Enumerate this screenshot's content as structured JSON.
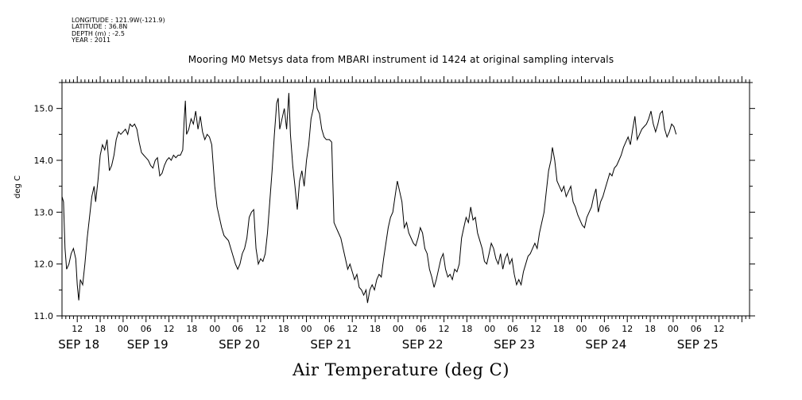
{
  "meta": {
    "longitude": "LONGITUDE : 121.9W(-121.9)",
    "latitude": "LATITUDE : 36.8N",
    "depth": "DEPTH (m) : -2.5",
    "year": "YEAR : 2011"
  },
  "chart_data": {
    "type": "line",
    "title": "Mooring M0 Metsys data from MBARI instrument id 1424 at original sampling intervals",
    "xlabel": "Air Temperature (deg C)",
    "ylabel": "deg C",
    "ylim": [
      11.0,
      15.5
    ],
    "y_ticks": [
      "11.0",
      "12.0",
      "13.0",
      "14.0",
      "15.0"
    ],
    "xlim_hours": [
      8,
      188
    ],
    "hour_tick_labels": [
      {
        "h": 12,
        "label": "12"
      },
      {
        "h": 18,
        "label": "18"
      },
      {
        "h": 24,
        "label": "00"
      },
      {
        "h": 30,
        "label": "06"
      },
      {
        "h": 36,
        "label": "12"
      },
      {
        "h": 42,
        "label": "18"
      },
      {
        "h": 48,
        "label": "00"
      },
      {
        "h": 54,
        "label": "06"
      },
      {
        "h": 60,
        "label": "12"
      },
      {
        "h": 66,
        "label": "18"
      },
      {
        "h": 72,
        "label": "00"
      },
      {
        "h": 78,
        "label": "06"
      },
      {
        "h": 84,
        "label": "12"
      },
      {
        "h": 90,
        "label": "18"
      },
      {
        "h": 96,
        "label": "00"
      },
      {
        "h": 102,
        "label": "06"
      },
      {
        "h": 108,
        "label": "12"
      },
      {
        "h": 114,
        "label": "18"
      },
      {
        "h": 120,
        "label": "00"
      },
      {
        "h": 126,
        "label": "06"
      },
      {
        "h": 132,
        "label": "12"
      },
      {
        "h": 138,
        "label": "18"
      },
      {
        "h": 144,
        "label": "00"
      },
      {
        "h": 150,
        "label": "06"
      },
      {
        "h": 156,
        "label": "12"
      },
      {
        "h": 162,
        "label": "18"
      },
      {
        "h": 168,
        "label": "00"
      },
      {
        "h": 174,
        "label": "06"
      },
      {
        "h": 180,
        "label": "12"
      }
    ],
    "day_labels": [
      {
        "h": 12,
        "label": "SEP 18"
      },
      {
        "h": 30,
        "label": "SEP 19"
      },
      {
        "h": 54,
        "label": "SEP 20"
      },
      {
        "h": 78,
        "label": "SEP 21"
      },
      {
        "h": 102,
        "label": "SEP 22"
      },
      {
        "h": 126,
        "label": "SEP 23"
      },
      {
        "h": 150,
        "label": "SEP 24"
      },
      {
        "h": 174,
        "label": "SEP 25"
      }
    ],
    "series": [
      {
        "points": [
          [
            8.0,
            13.3
          ],
          [
            8.4,
            13.2
          ],
          [
            8.8,
            12.3
          ],
          [
            9.2,
            11.9
          ],
          [
            9.8,
            12.0
          ],
          [
            10.4,
            12.2
          ],
          [
            11.0,
            12.3
          ],
          [
            11.6,
            12.1
          ],
          [
            12.0,
            11.6
          ],
          [
            12.4,
            11.3
          ],
          [
            12.8,
            11.7
          ],
          [
            13.4,
            11.6
          ],
          [
            14.0,
            12.0
          ],
          [
            14.6,
            12.5
          ],
          [
            15.2,
            12.9
          ],
          [
            15.8,
            13.3
          ],
          [
            16.4,
            13.5
          ],
          [
            16.8,
            13.2
          ],
          [
            17.4,
            13.6
          ],
          [
            18.0,
            14.1
          ],
          [
            18.6,
            14.3
          ],
          [
            19.2,
            14.2
          ],
          [
            19.8,
            14.4
          ],
          [
            20.4,
            13.8
          ],
          [
            21.0,
            13.9
          ],
          [
            21.6,
            14.1
          ],
          [
            22.2,
            14.4
          ],
          [
            22.8,
            14.55
          ],
          [
            23.4,
            14.5
          ],
          [
            24.0,
            14.55
          ],
          [
            24.6,
            14.6
          ],
          [
            25.2,
            14.5
          ],
          [
            25.8,
            14.7
          ],
          [
            26.4,
            14.65
          ],
          [
            27.0,
            14.7
          ],
          [
            27.6,
            14.6
          ],
          [
            28.2,
            14.35
          ],
          [
            28.8,
            14.15
          ],
          [
            29.4,
            14.1
          ],
          [
            30.0,
            14.05
          ],
          [
            30.6,
            14.0
          ],
          [
            31.2,
            13.9
          ],
          [
            31.8,
            13.85
          ],
          [
            32.4,
            14.0
          ],
          [
            33.0,
            14.05
          ],
          [
            33.6,
            13.7
          ],
          [
            34.2,
            13.75
          ],
          [
            34.8,
            13.9
          ],
          [
            35.4,
            14.0
          ],
          [
            36.0,
            14.05
          ],
          [
            36.6,
            14.0
          ],
          [
            37.2,
            14.1
          ],
          [
            37.8,
            14.05
          ],
          [
            38.4,
            14.1
          ],
          [
            39.0,
            14.1
          ],
          [
            39.6,
            14.2
          ],
          [
            40.0,
            14.8
          ],
          [
            40.3,
            15.15
          ],
          [
            40.6,
            14.5
          ],
          [
            41.2,
            14.6
          ],
          [
            41.8,
            14.8
          ],
          [
            42.4,
            14.7
          ],
          [
            43.0,
            14.95
          ],
          [
            43.6,
            14.6
          ],
          [
            44.2,
            14.85
          ],
          [
            44.8,
            14.55
          ],
          [
            45.4,
            14.4
          ],
          [
            46.0,
            14.5
          ],
          [
            46.6,
            14.45
          ],
          [
            47.2,
            14.3
          ],
          [
            47.6,
            13.9
          ],
          [
            48.0,
            13.5
          ],
          [
            48.6,
            13.1
          ],
          [
            49.2,
            12.9
          ],
          [
            49.8,
            12.7
          ],
          [
            50.4,
            12.55
          ],
          [
            51.0,
            12.5
          ],
          [
            51.6,
            12.45
          ],
          [
            52.2,
            12.3
          ],
          [
            52.8,
            12.15
          ],
          [
            53.4,
            12.0
          ],
          [
            54.0,
            11.9
          ],
          [
            54.6,
            12.0
          ],
          [
            55.2,
            12.2
          ],
          [
            55.8,
            12.3
          ],
          [
            56.4,
            12.5
          ],
          [
            57.0,
            12.9
          ],
          [
            57.6,
            13.0
          ],
          [
            58.2,
            13.05
          ],
          [
            58.8,
            12.3
          ],
          [
            59.4,
            12.0
          ],
          [
            60.0,
            12.1
          ],
          [
            60.6,
            12.05
          ],
          [
            61.2,
            12.2
          ],
          [
            61.8,
            12.6
          ],
          [
            62.4,
            13.2
          ],
          [
            63.0,
            13.8
          ],
          [
            63.6,
            14.5
          ],
          [
            64.2,
            15.1
          ],
          [
            64.6,
            15.2
          ],
          [
            65.0,
            14.6
          ],
          [
            65.6,
            14.8
          ],
          [
            66.2,
            15.0
          ],
          [
            66.8,
            14.6
          ],
          [
            67.4,
            15.3
          ],
          [
            67.8,
            14.5
          ],
          [
            68.4,
            13.9
          ],
          [
            69.0,
            13.5
          ],
          [
            69.6,
            13.05
          ],
          [
            70.2,
            13.6
          ],
          [
            70.8,
            13.8
          ],
          [
            71.4,
            13.5
          ],
          [
            72.0,
            14.0
          ],
          [
            72.6,
            14.3
          ],
          [
            73.2,
            14.8
          ],
          [
            73.8,
            15.0
          ],
          [
            74.2,
            15.4
          ],
          [
            74.8,
            15.0
          ],
          [
            75.4,
            14.9
          ],
          [
            76.0,
            14.6
          ],
          [
            76.6,
            14.45
          ],
          [
            77.2,
            14.4
          ],
          [
            78.0,
            14.4
          ],
          [
            78.6,
            14.35
          ],
          [
            79.2,
            12.8
          ],
          [
            79.8,
            12.7
          ],
          [
            80.4,
            12.6
          ],
          [
            81.0,
            12.5
          ],
          [
            81.6,
            12.3
          ],
          [
            82.2,
            12.1
          ],
          [
            82.8,
            11.9
          ],
          [
            83.4,
            12.0
          ],
          [
            84.0,
            11.85
          ],
          [
            84.6,
            11.7
          ],
          [
            85.2,
            11.8
          ],
          [
            85.8,
            11.55
          ],
          [
            86.4,
            11.5
          ],
          [
            87.0,
            11.4
          ],
          [
            87.6,
            11.5
          ],
          [
            88.0,
            11.25
          ],
          [
            88.6,
            11.5
          ],
          [
            89.2,
            11.6
          ],
          [
            89.8,
            11.5
          ],
          [
            90.4,
            11.7
          ],
          [
            91.0,
            11.8
          ],
          [
            91.6,
            11.75
          ],
          [
            92.2,
            12.1
          ],
          [
            92.8,
            12.4
          ],
          [
            93.4,
            12.7
          ],
          [
            94.0,
            12.9
          ],
          [
            94.6,
            13.0
          ],
          [
            95.2,
            13.3
          ],
          [
            95.8,
            13.6
          ],
          [
            96.4,
            13.4
          ],
          [
            97.0,
            13.2
          ],
          [
            97.6,
            12.7
          ],
          [
            98.2,
            12.8
          ],
          [
            98.8,
            12.6
          ],
          [
            99.4,
            12.5
          ],
          [
            100.0,
            12.4
          ],
          [
            100.6,
            12.35
          ],
          [
            101.2,
            12.5
          ],
          [
            101.8,
            12.7
          ],
          [
            102.4,
            12.6
          ],
          [
            103.0,
            12.3
          ],
          [
            103.6,
            12.2
          ],
          [
            104.2,
            11.9
          ],
          [
            104.8,
            11.75
          ],
          [
            105.4,
            11.55
          ],
          [
            106.0,
            11.7
          ],
          [
            106.6,
            11.9
          ],
          [
            107.2,
            12.1
          ],
          [
            107.8,
            12.2
          ],
          [
            108.4,
            11.9
          ],
          [
            109.0,
            11.75
          ],
          [
            109.6,
            11.8
          ],
          [
            110.2,
            11.7
          ],
          [
            110.8,
            11.9
          ],
          [
            111.4,
            11.85
          ],
          [
            112.0,
            12.0
          ],
          [
            112.6,
            12.5
          ],
          [
            113.2,
            12.7
          ],
          [
            113.8,
            12.9
          ],
          [
            114.4,
            12.8
          ],
          [
            115.0,
            13.1
          ],
          [
            115.6,
            12.85
          ],
          [
            116.2,
            12.9
          ],
          [
            116.8,
            12.6
          ],
          [
            117.4,
            12.45
          ],
          [
            118.0,
            12.3
          ],
          [
            118.6,
            12.05
          ],
          [
            119.2,
            12.0
          ],
          [
            119.8,
            12.2
          ],
          [
            120.4,
            12.4
          ],
          [
            121.0,
            12.3
          ],
          [
            121.6,
            12.1
          ],
          [
            122.2,
            12.0
          ],
          [
            122.8,
            12.2
          ],
          [
            123.4,
            11.9
          ],
          [
            124.0,
            12.1
          ],
          [
            124.6,
            12.2
          ],
          [
            125.2,
            12.0
          ],
          [
            125.8,
            12.1
          ],
          [
            126.4,
            11.8
          ],
          [
            127.0,
            11.6
          ],
          [
            127.6,
            11.7
          ],
          [
            128.2,
            11.6
          ],
          [
            128.8,
            11.85
          ],
          [
            129.4,
            12.0
          ],
          [
            130.0,
            12.15
          ],
          [
            130.6,
            12.2
          ],
          [
            131.2,
            12.3
          ],
          [
            131.8,
            12.4
          ],
          [
            132.4,
            12.3
          ],
          [
            133.0,
            12.6
          ],
          [
            133.6,
            12.8
          ],
          [
            134.2,
            13.0
          ],
          [
            134.8,
            13.4
          ],
          [
            135.4,
            13.8
          ],
          [
            136.0,
            14.0
          ],
          [
            136.4,
            14.25
          ],
          [
            137.0,
            14.0
          ],
          [
            137.6,
            13.6
          ],
          [
            138.2,
            13.5
          ],
          [
            138.8,
            13.4
          ],
          [
            139.4,
            13.5
          ],
          [
            140.0,
            13.3
          ],
          [
            140.6,
            13.4
          ],
          [
            141.2,
            13.5
          ],
          [
            141.8,
            13.2
          ],
          [
            142.4,
            13.1
          ],
          [
            143.0,
            12.95
          ],
          [
            143.6,
            12.85
          ],
          [
            144.2,
            12.75
          ],
          [
            144.8,
            12.7
          ],
          [
            145.4,
            12.9
          ],
          [
            146.0,
            13.0
          ],
          [
            146.6,
            13.1
          ],
          [
            147.2,
            13.3
          ],
          [
            147.8,
            13.45
          ],
          [
            148.4,
            13.0
          ],
          [
            149.0,
            13.2
          ],
          [
            149.6,
            13.3
          ],
          [
            150.2,
            13.45
          ],
          [
            150.8,
            13.6
          ],
          [
            151.4,
            13.75
          ],
          [
            152.0,
            13.7
          ],
          [
            152.6,
            13.85
          ],
          [
            153.2,
            13.9
          ],
          [
            153.8,
            14.0
          ],
          [
            154.4,
            14.1
          ],
          [
            155.0,
            14.25
          ],
          [
            155.6,
            14.35
          ],
          [
            156.2,
            14.45
          ],
          [
            156.8,
            14.3
          ],
          [
            157.4,
            14.6
          ],
          [
            158.0,
            14.85
          ],
          [
            158.6,
            14.4
          ],
          [
            159.2,
            14.5
          ],
          [
            159.8,
            14.6
          ],
          [
            160.4,
            14.65
          ],
          [
            161.0,
            14.7
          ],
          [
            161.6,
            14.8
          ],
          [
            162.2,
            14.95
          ],
          [
            162.8,
            14.7
          ],
          [
            163.4,
            14.55
          ],
          [
            164.0,
            14.7
          ],
          [
            164.6,
            14.9
          ],
          [
            165.2,
            14.95
          ],
          [
            165.8,
            14.6
          ],
          [
            166.4,
            14.45
          ],
          [
            167.0,
            14.55
          ],
          [
            167.6,
            14.7
          ],
          [
            168.2,
            14.65
          ],
          [
            168.8,
            14.5
          ]
        ]
      }
    ]
  }
}
